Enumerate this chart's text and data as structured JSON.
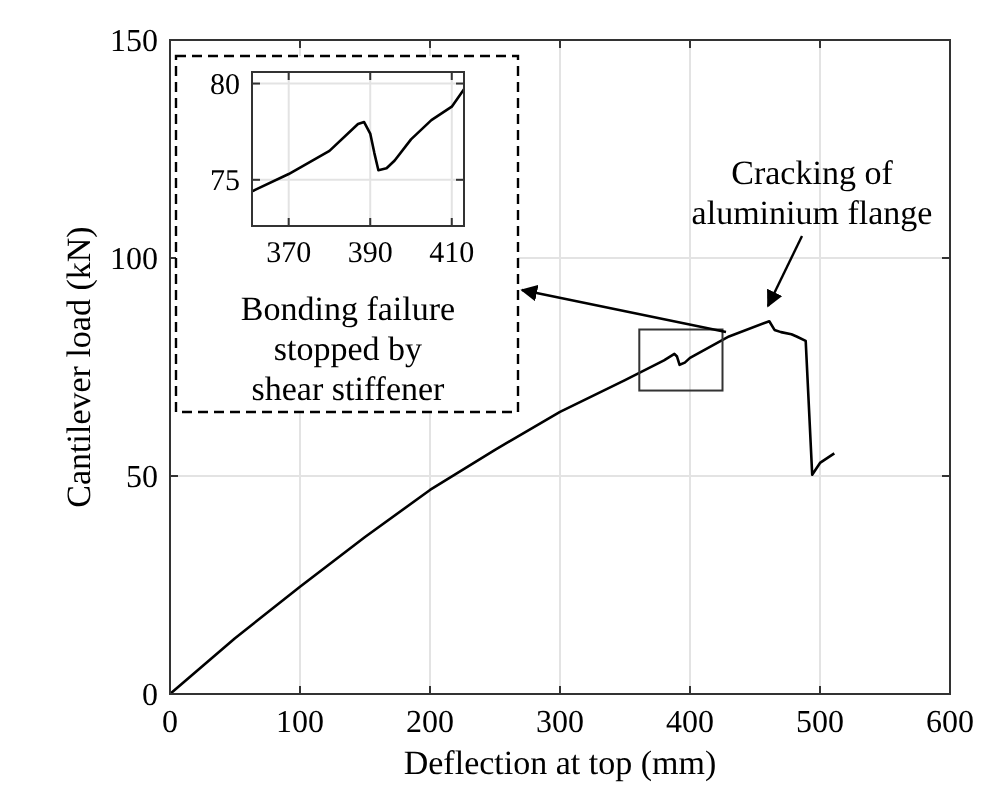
{
  "chart_data": [
    {
      "type": "line",
      "xlabel": "Deflection at top (mm)",
      "ylabel": "Cantilever load (kN)",
      "xlim": [
        0,
        600
      ],
      "ylim": [
        0,
        150
      ],
      "xticks": [
        0,
        100,
        200,
        300,
        400,
        500,
        600
      ],
      "yticks": [
        0,
        50,
        100,
        150
      ],
      "grid": true,
      "series": [
        {
          "color": "#000000",
          "x": [
            0,
            50,
            100,
            150,
            200,
            250,
            300,
            350,
            380,
            388,
            390,
            392,
            396,
            400,
            430,
            461,
            465,
            470,
            478,
            482,
            489,
            494,
            500,
            511
          ],
          "values": [
            0,
            12.8,
            24.6,
            36,
            46.8,
            56,
            64.7,
            72,
            76.5,
            78,
            77.4,
            75.5,
            76,
            77.1,
            82,
            85.5,
            83.5,
            83,
            82.5,
            82,
            81,
            50.3,
            53,
            55.2
          ]
        }
      ],
      "annotations": [
        "Cracking of aluminium flange",
        "Bonding failure stopped by shear stiffener"
      ]
    },
    {
      "type": "line",
      "xlim": [
        361,
        413
      ],
      "ylim": [
        72.6,
        80.6
      ],
      "xticks": [
        370,
        390,
        410
      ],
      "yticks": [
        75,
        80
      ],
      "grid": true,
      "series": [
        {
          "color": "#000000",
          "x": [
            361,
            370,
            380,
            387,
            388.5,
            390,
            391,
            392,
            394,
            396,
            400,
            405,
            410,
            413
          ],
          "values": [
            74.4,
            75.3,
            76.5,
            77.9,
            78,
            77.4,
            76.4,
            75.5,
            75.6,
            76,
            77.1,
            78.1,
            78.8,
            79.7
          ]
        }
      ]
    }
  ]
}
